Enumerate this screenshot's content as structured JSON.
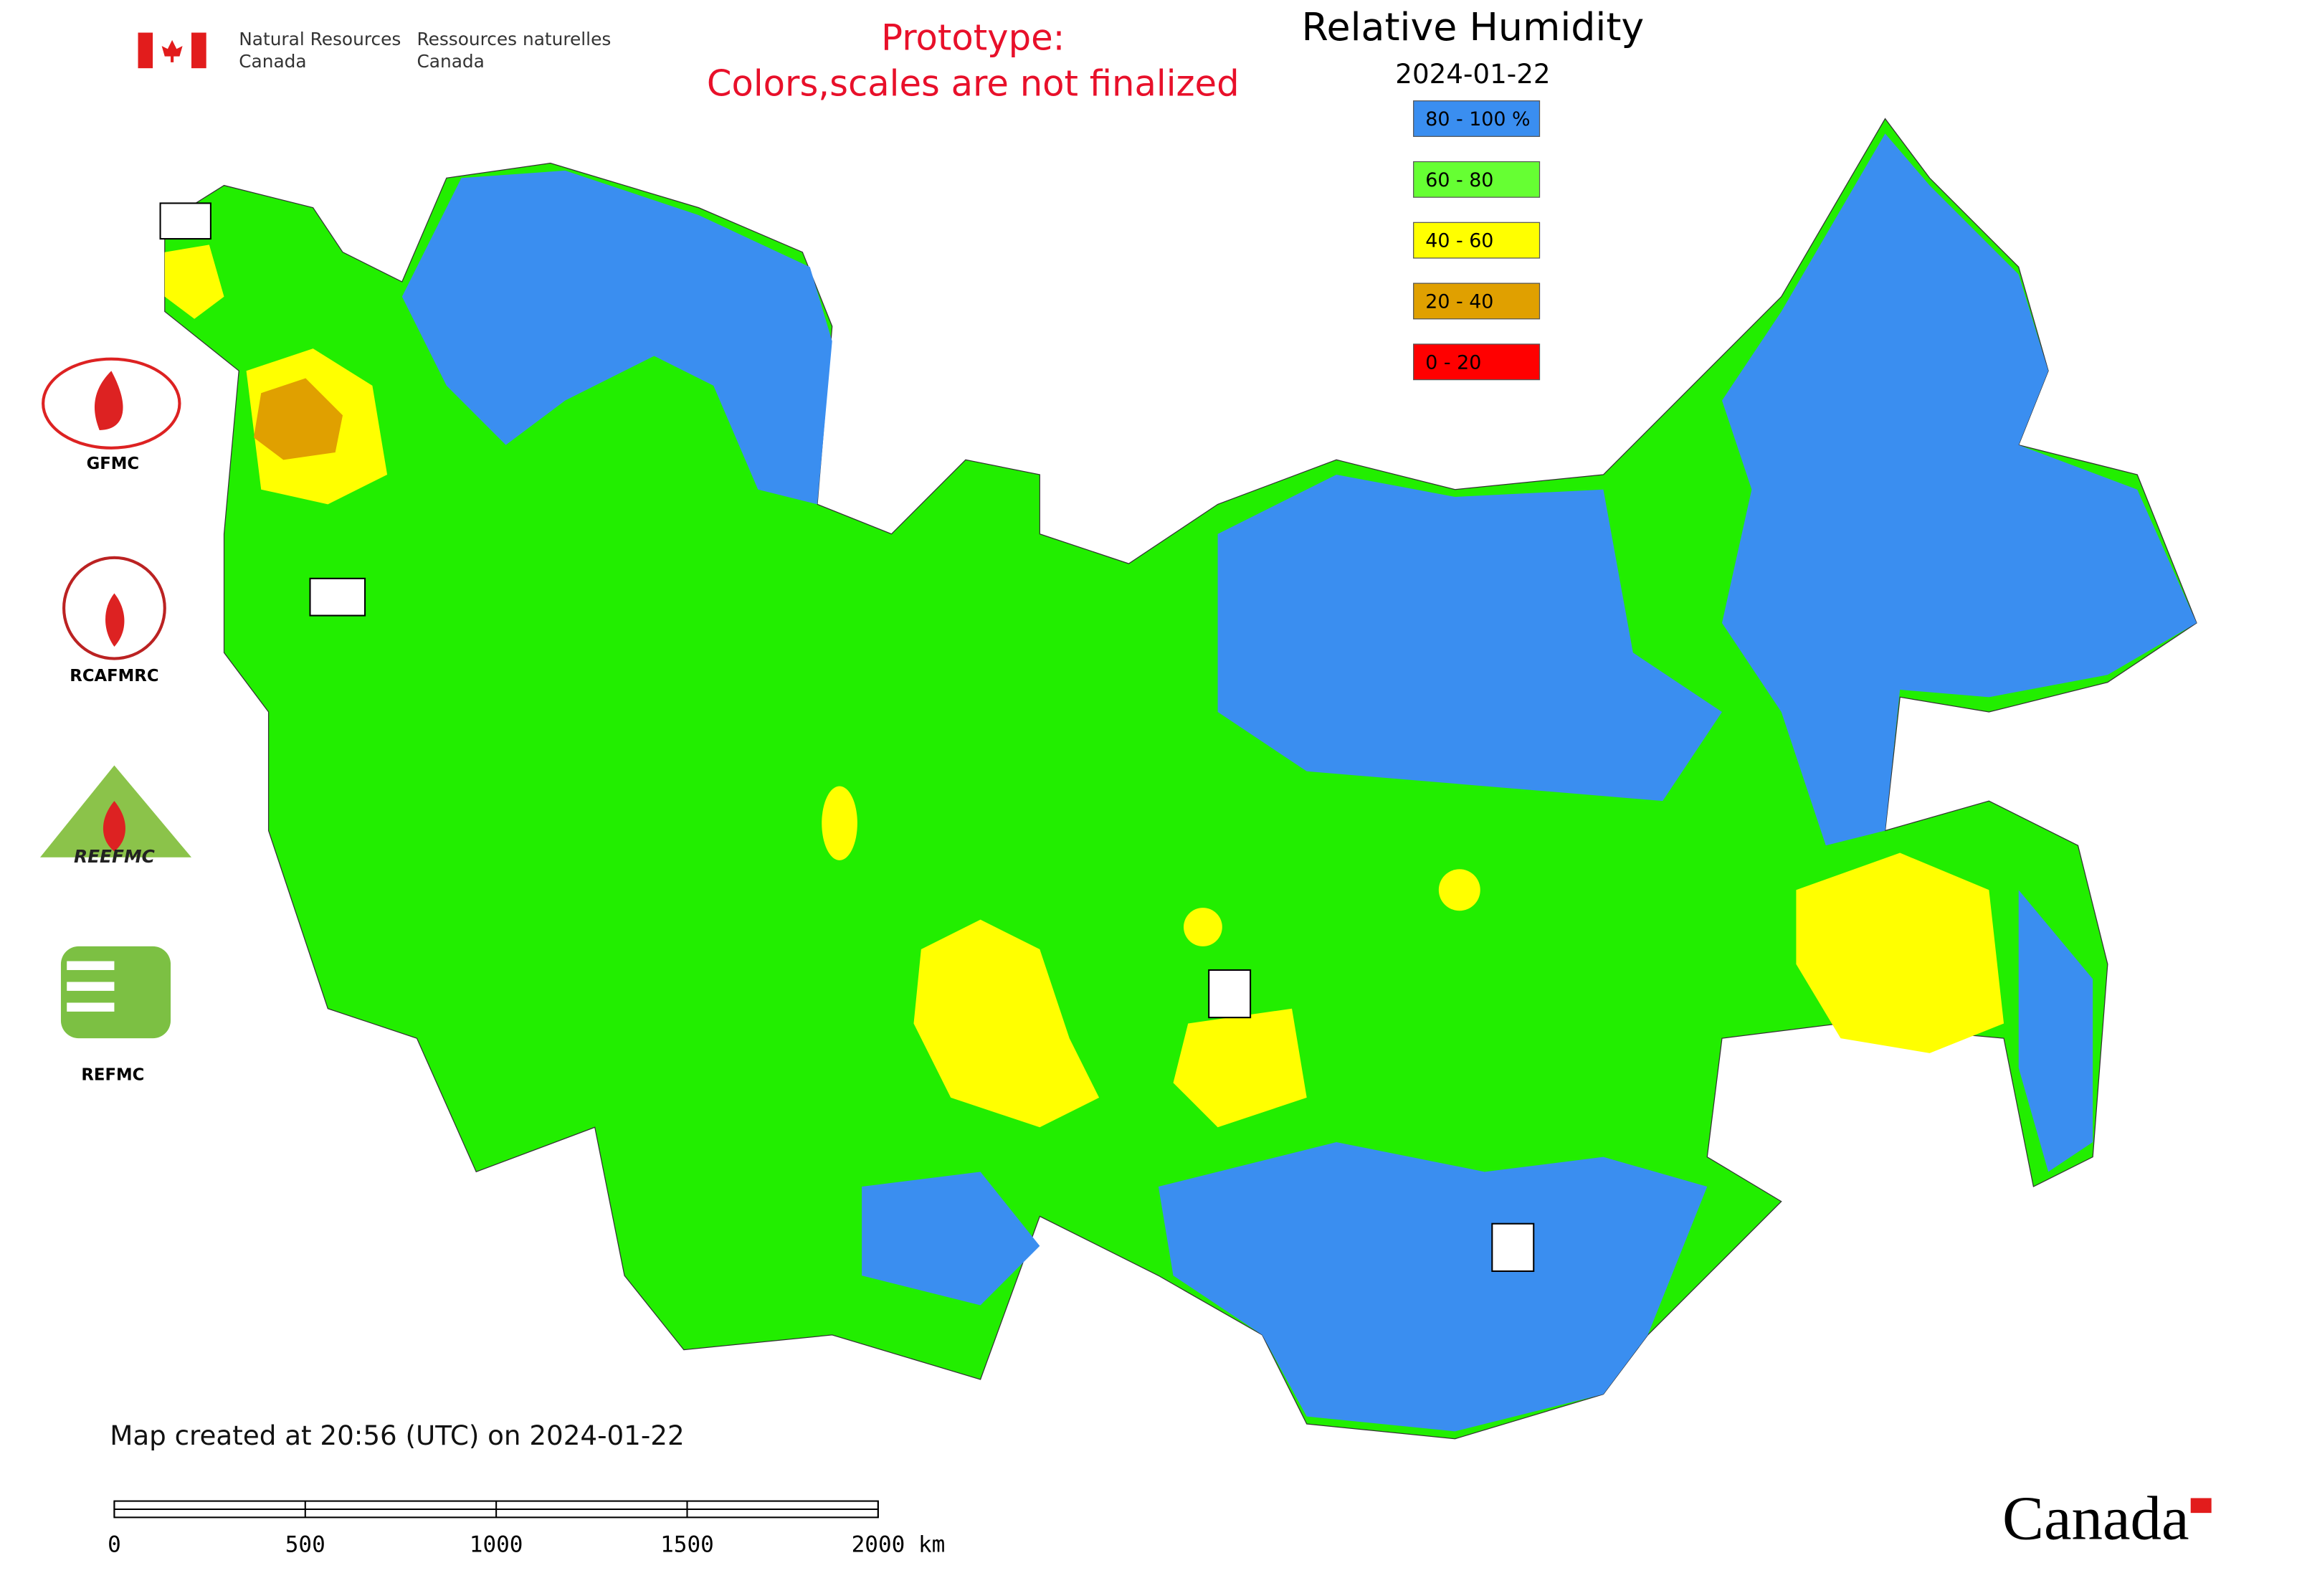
{
  "header": {
    "agency_en": [
      "Natural Resources",
      "Canada"
    ],
    "agency_fr": [
      "Ressources naturelles",
      "Canada"
    ],
    "notice": [
      "Prototype:",
      "Colors,scales are not finalized"
    ]
  },
  "title": "Relative Humidity",
  "date": "2024-01-22",
  "legend": [
    {
      "label": "80 - 100 %",
      "color": "#3a8ef0"
    },
    {
      "label": "60 - 80",
      "color": "#66ff33"
    },
    {
      "label": "40 - 60",
      "color": "#ffff00"
    },
    {
      "label": "20 - 40",
      "color": "#e0a000"
    },
    {
      "label": "0 - 20",
      "color": "#ff0000"
    }
  ],
  "logos": [
    "GFMC",
    "RCAFMRC",
    "REEFMC",
    "REFMC"
  ],
  "footer": "Map created at 20:56 (UTC) on 2024-01-22",
  "scale_bar": [
    "0",
    "500",
    "1000",
    "1500",
    "2000 km"
  ],
  "wordmark": "Canada"
}
